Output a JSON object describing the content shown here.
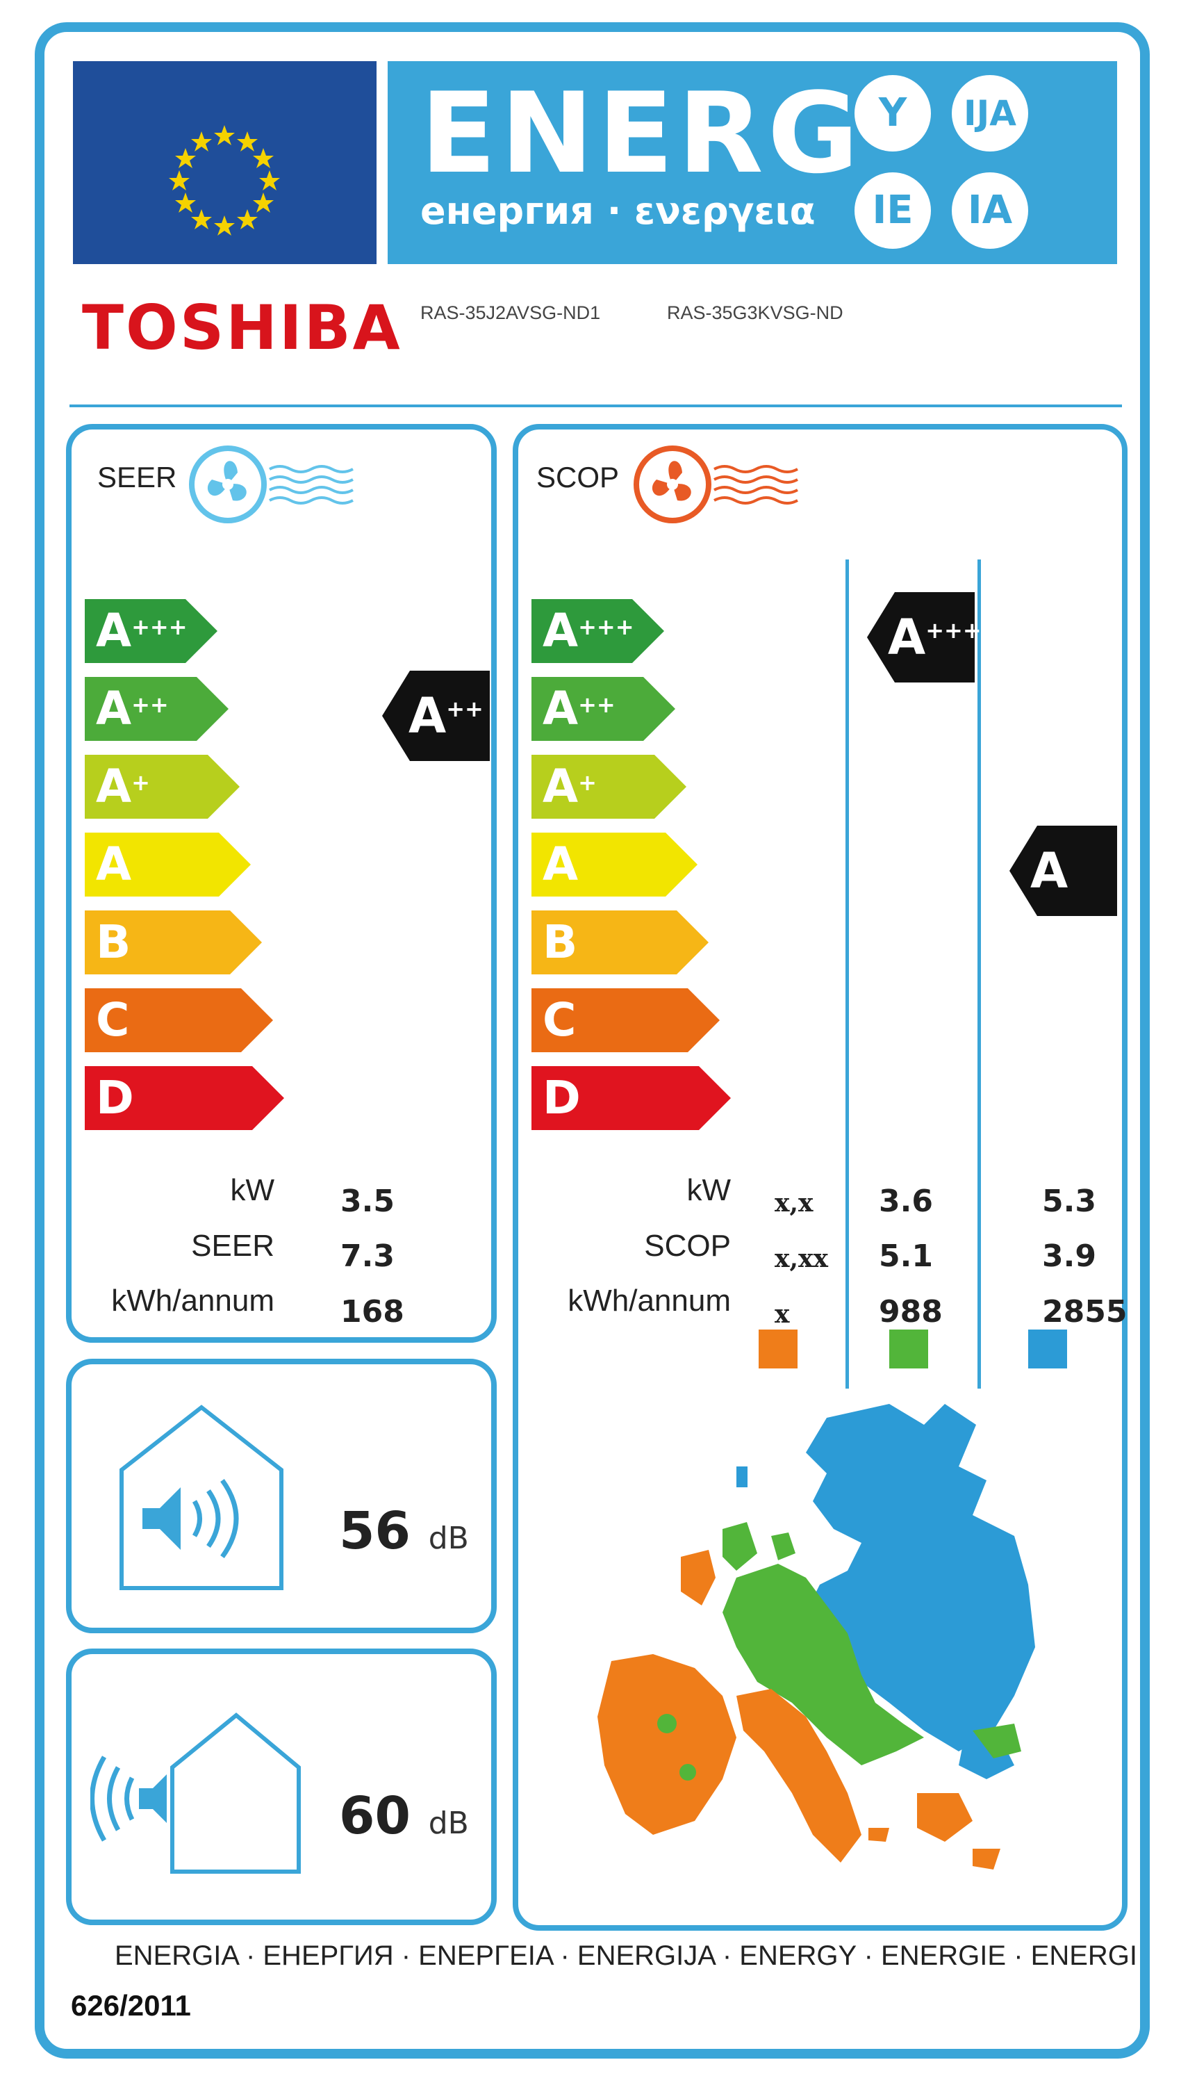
{
  "header": {
    "energy_word": "ENERG",
    "energy_sub": "енергия · ενεργεια",
    "suffixes": [
      "Y",
      "IJA",
      "IE",
      "IA"
    ],
    "eu_flag": "eu-flag-icon"
  },
  "brand": {
    "name": "TOSHIBA",
    "indoor_model": "RAS-35J2AVSG-ND1",
    "outdoor_model": "RAS-35G3KVSG-ND"
  },
  "seer": {
    "title": "SEER",
    "icon": "fan-cool-icon",
    "scale": [
      {
        "grade": "A",
        "plus": "+++",
        "color": "#2e9a3c"
      },
      {
        "grade": "A",
        "plus": "++",
        "color": "#4cab3a"
      },
      {
        "grade": "A",
        "plus": "+",
        "color": "#b7cf1d"
      },
      {
        "grade": "A",
        "plus": "",
        "color": "#f2e500"
      },
      {
        "grade": "B",
        "plus": "",
        "color": "#f6b616"
      },
      {
        "grade": "C",
        "plus": "",
        "color": "#ea6b14"
      },
      {
        "grade": "D",
        "plus": "",
        "color": "#e0141f"
      }
    ],
    "rating": {
      "grade": "A",
      "plus": "++"
    },
    "labels": [
      "kW",
      "SEER",
      "kWh/annum"
    ],
    "values": [
      "3.5",
      "7.3",
      "168"
    ]
  },
  "scop": {
    "title": "SCOP",
    "icon": "fan-heat-icon",
    "scale": [
      {
        "grade": "A",
        "plus": "+++",
        "color": "#2e9a3c"
      },
      {
        "grade": "A",
        "plus": "++",
        "color": "#4cab3a"
      },
      {
        "grade": "A",
        "plus": "+",
        "color": "#b7cf1d"
      },
      {
        "grade": "A",
        "plus": "",
        "color": "#f2e500"
      },
      {
        "grade": "B",
        "plus": "",
        "color": "#f6b616"
      },
      {
        "grade": "C",
        "plus": "",
        "color": "#ea6b14"
      },
      {
        "grade": "D",
        "plus": "",
        "color": "#e0141f"
      }
    ],
    "rating_average": {
      "grade": "A",
      "plus": "+++"
    },
    "rating_colder": {
      "grade": "A",
      "plus": ""
    },
    "labels": [
      "kW",
      "SCOP",
      "kWh/annum"
    ],
    "warmer": [
      "x,x",
      "x,xx",
      "x"
    ],
    "average": [
      "3.6",
      "5.1",
      "988"
    ],
    "colder": [
      "5.3",
      "3.9",
      "2855"
    ],
    "zone_colors": {
      "warmer": "#ef7d1a",
      "average": "#52b53a",
      "colder": "#2c9bd6"
    }
  },
  "noise": {
    "indoor_value": "56",
    "indoor_unit": "dB",
    "indoor_icon": "indoor-noise-icon",
    "outdoor_value": "60",
    "outdoor_unit": "dB",
    "outdoor_icon": "outdoor-noise-icon"
  },
  "map": {
    "icon": "europe-climate-map"
  },
  "footer": {
    "languages": "ENERGIA · ЕНЕРГИЯ · ΕΝΕΡΓΕΙΑ · ENERGIJA · ENERGY · ENERGIE · ENERGI",
    "regulation": "626/2011"
  }
}
